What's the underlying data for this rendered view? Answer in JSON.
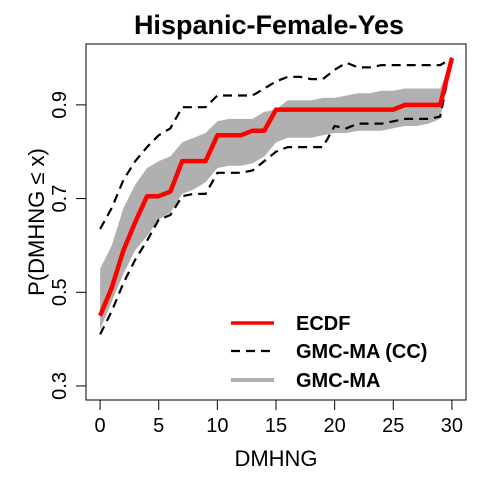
{
  "chart_data": {
    "type": "line",
    "title": "Hispanic-Female-Yes",
    "xlabel": "DMHNG",
    "ylabel": "P(DMHNG ≤ x)",
    "xlim": [
      -1.2,
      31.2
    ],
    "ylim": [
      0.27,
      1.03
    ],
    "x_ticks": [
      0,
      5,
      10,
      15,
      20,
      25,
      30
    ],
    "y_ticks": [
      0.3,
      0.5,
      0.7,
      0.9
    ],
    "grid": false,
    "legend_position": "bottom-right",
    "series": [
      {
        "name": "ECDF",
        "style": "solid",
        "color": "#ff0000",
        "x": [
          0,
          1,
          2,
          3,
          4,
          5,
          6,
          7,
          8,
          9,
          10,
          11,
          12,
          13,
          14,
          15,
          16,
          17,
          18,
          19,
          20,
          21,
          22,
          23,
          24,
          25,
          26,
          27,
          28,
          29,
          30
        ],
        "y": [
          0.45,
          0.51,
          0.59,
          0.65,
          0.705,
          0.705,
          0.715,
          0.78,
          0.78,
          0.78,
          0.835,
          0.835,
          0.835,
          0.845,
          0.845,
          0.89,
          0.89,
          0.89,
          0.89,
          0.89,
          0.89,
          0.89,
          0.89,
          0.89,
          0.89,
          0.89,
          0.9,
          0.9,
          0.9,
          0.9,
          1.0
        ]
      },
      {
        "name": "GMC-MA (CC)",
        "style": "dashed",
        "color": "#000000",
        "upper_x": [
          0,
          1,
          2,
          3,
          4,
          5,
          6,
          7,
          8,
          9,
          10,
          11,
          12,
          13,
          14,
          15,
          16,
          17,
          18,
          19,
          20,
          21,
          22,
          23,
          24,
          25,
          26,
          27,
          28,
          29,
          30
        ],
        "upper_y": [
          0.635,
          0.68,
          0.74,
          0.78,
          0.81,
          0.835,
          0.85,
          0.895,
          0.895,
          0.895,
          0.92,
          0.92,
          0.92,
          0.92,
          0.935,
          0.95,
          0.96,
          0.96,
          0.955,
          0.955,
          0.975,
          0.99,
          0.98,
          0.98,
          0.985,
          0.985,
          0.985,
          0.985,
          0.985,
          0.985,
          1.0
        ],
        "lower_x": [
          0,
          1,
          2,
          3,
          4,
          5,
          6,
          7,
          8,
          9,
          10,
          11,
          12,
          13,
          14,
          15,
          16,
          17,
          18,
          19,
          20,
          21,
          22,
          23,
          24,
          25,
          26,
          27,
          28,
          29,
          30
        ],
        "lower_y": [
          0.41,
          0.46,
          0.52,
          0.57,
          0.61,
          0.655,
          0.665,
          0.705,
          0.71,
          0.71,
          0.755,
          0.755,
          0.755,
          0.76,
          0.78,
          0.8,
          0.81,
          0.81,
          0.81,
          0.81,
          0.855,
          0.85,
          0.86,
          0.86,
          0.86,
          0.865,
          0.87,
          0.87,
          0.87,
          0.875,
          1.0
        ]
      },
      {
        "name": "GMC-MA",
        "style": "band",
        "color": "#b0b0b0",
        "upper_x": [
          0,
          1,
          2,
          3,
          4,
          5,
          6,
          7,
          8,
          9,
          10,
          11,
          12,
          13,
          14,
          15,
          16,
          17,
          18,
          19,
          20,
          21,
          22,
          23,
          24,
          25,
          26,
          27,
          28,
          29,
          30
        ],
        "upper_y": [
          0.55,
          0.6,
          0.68,
          0.73,
          0.765,
          0.78,
          0.79,
          0.82,
          0.83,
          0.84,
          0.865,
          0.87,
          0.87,
          0.87,
          0.885,
          0.89,
          0.91,
          0.91,
          0.91,
          0.915,
          0.915,
          0.92,
          0.925,
          0.925,
          0.93,
          0.93,
          0.935,
          0.935,
          0.935,
          0.935,
          1.0
        ],
        "lower_x": [
          0,
          1,
          2,
          3,
          4,
          5,
          6,
          7,
          8,
          9,
          10,
          11,
          12,
          13,
          14,
          15,
          16,
          17,
          18,
          19,
          20,
          21,
          22,
          23,
          24,
          25,
          26,
          27,
          28,
          29,
          30
        ],
        "lower_y": [
          0.42,
          0.48,
          0.54,
          0.59,
          0.62,
          0.655,
          0.67,
          0.71,
          0.72,
          0.735,
          0.765,
          0.77,
          0.77,
          0.775,
          0.79,
          0.82,
          0.83,
          0.83,
          0.83,
          0.835,
          0.84,
          0.84,
          0.845,
          0.845,
          0.845,
          0.85,
          0.855,
          0.855,
          0.86,
          0.87,
          1.0
        ]
      }
    ]
  }
}
